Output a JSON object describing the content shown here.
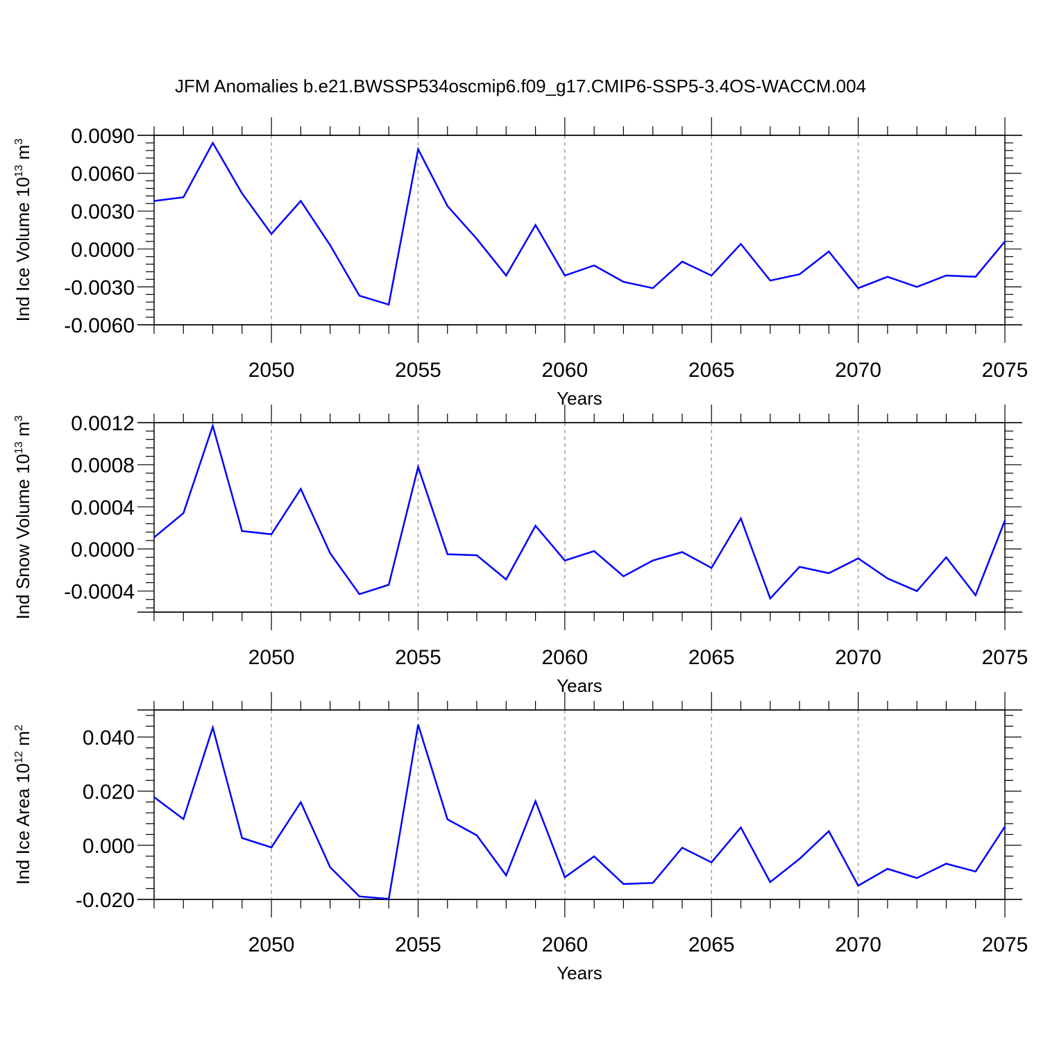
{
  "figure_title": "JFM Anomalies b.e21.BWSSP534oscmip6.f09_g17.CMIP6-SSP5-3.4OS-WACCM.004",
  "colors": {
    "line": "#0000ff",
    "axes": "#000000",
    "grid": "#a0a0a0",
    "background": "#ffffff"
  },
  "chart_data": [
    {
      "type": "line",
      "name": "ice-volume",
      "ylabel": {
        "main": "Ind Ice Volume 10",
        "exp1": "13",
        "unit": " m",
        "exp2": "3"
      },
      "xlabel": "Years",
      "xlim": [
        2046,
        2075
      ],
      "ylim": [
        -0.006,
        0.009
      ],
      "yticks": [
        -0.006,
        -0.003,
        0.0,
        0.003,
        0.006,
        0.009
      ],
      "ytick_labels": [
        "-0.0060",
        "-0.0030",
        "0.0000",
        "0.0030",
        "0.0060",
        "0.0090"
      ],
      "xticks": [
        2050,
        2055,
        2060,
        2065,
        2070,
        2075
      ],
      "xtick_labels": [
        "2050",
        "2055",
        "2060",
        "2065",
        "2070",
        "2075"
      ],
      "x": [
        2046,
        2047,
        2048,
        2049,
        2050,
        2051,
        2052,
        2053,
        2054,
        2055,
        2056,
        2057,
        2058,
        2059,
        2060,
        2061,
        2062,
        2063,
        2064,
        2065,
        2066,
        2067,
        2068,
        2069,
        2070,
        2071,
        2072,
        2073,
        2074,
        2075
      ],
      "values": [
        0.0038,
        0.0041,
        0.0084,
        0.0044,
        0.0012,
        0.0038,
        0.0003,
        -0.0037,
        -0.0044,
        0.0079,
        0.0034,
        0.0008,
        -0.0021,
        0.0019,
        -0.0021,
        -0.0013,
        -0.0026,
        -0.0031,
        -0.001,
        -0.0021,
        0.0004,
        -0.0025,
        -0.002,
        -0.0002,
        -0.0031,
        -0.0022,
        -0.003,
        -0.0021,
        -0.0022,
        0.0006
      ]
    },
    {
      "type": "line",
      "name": "snow-volume",
      "ylabel": {
        "main": "Ind Snow Volume 10",
        "exp1": "13",
        "unit": " m",
        "exp2": "3"
      },
      "xlabel": "Years",
      "xlim": [
        2046,
        2075
      ],
      "ylim": [
        -0.0006,
        0.0012
      ],
      "yticks": [
        -0.0004,
        0.0,
        0.0004,
        0.0008,
        0.0012
      ],
      "ytick_labels": [
        "-0.0004",
        "0.0000",
        "0.0004",
        "0.0008",
        "0.0012"
      ],
      "xticks": [
        2050,
        2055,
        2060,
        2065,
        2070,
        2075
      ],
      "xtick_labels": [
        "2050",
        "2055",
        "2060",
        "2065",
        "2070",
        "2075"
      ],
      "x": [
        2046,
        2047,
        2048,
        2049,
        2050,
        2051,
        2052,
        2053,
        2054,
        2055,
        2056,
        2057,
        2058,
        2059,
        2060,
        2061,
        2062,
        2063,
        2064,
        2065,
        2066,
        2067,
        2068,
        2069,
        2070,
        2071,
        2072,
        2073,
        2074,
        2075
      ],
      "values": [
        0.00011,
        0.00034,
        0.00117,
        0.00017,
        0.00014,
        0.00057,
        -4e-05,
        -0.00043,
        -0.00034,
        0.00078,
        -5e-05,
        -6e-05,
        -0.00029,
        0.00022,
        -0.00011,
        -2e-05,
        -0.00026,
        -0.00011,
        -3e-05,
        -0.00018,
        0.00029,
        -0.00047,
        -0.00017,
        -0.00023,
        -9e-05,
        -0.00028,
        -0.0004,
        -8e-05,
        -0.00044,
        0.00027
      ]
    },
    {
      "type": "line",
      "name": "ice-area",
      "ylabel": {
        "main": "Ind Ice Area 10",
        "exp1": "12",
        "unit": " m",
        "exp2": "2"
      },
      "xlabel": "Years",
      "xlim": [
        2046,
        2075
      ],
      "ylim": [
        -0.02,
        0.05
      ],
      "yticks": [
        -0.02,
        0.0,
        0.02,
        0.04
      ],
      "ytick_labels": [
        "-0.020",
        "0.000",
        "0.020",
        "0.040"
      ],
      "xticks": [
        2050,
        2055,
        2060,
        2065,
        2070,
        2075
      ],
      "xtick_labels": [
        "2050",
        "2055",
        "2060",
        "2065",
        "2070",
        "2075"
      ],
      "x": [
        2046,
        2047,
        2048,
        2049,
        2050,
        2051,
        2052,
        2053,
        2054,
        2055,
        2056,
        2057,
        2058,
        2059,
        2060,
        2061,
        2062,
        2063,
        2064,
        2065,
        2066,
        2067,
        2068,
        2069,
        2070,
        2071,
        2072,
        2073,
        2074,
        2075
      ],
      "values": [
        0.0178,
        0.0097,
        0.0435,
        0.0027,
        -0.0008,
        0.0159,
        -0.0081,
        -0.0189,
        -0.0198,
        0.0446,
        0.0096,
        0.0037,
        -0.0111,
        0.0163,
        -0.0118,
        -0.0041,
        -0.0143,
        -0.0139,
        -0.0009,
        -0.0063,
        0.0066,
        -0.0136,
        -0.005,
        0.0052,
        -0.0149,
        -0.0087,
        -0.0121,
        -0.0068,
        -0.0097,
        0.0069
      ]
    }
  ]
}
